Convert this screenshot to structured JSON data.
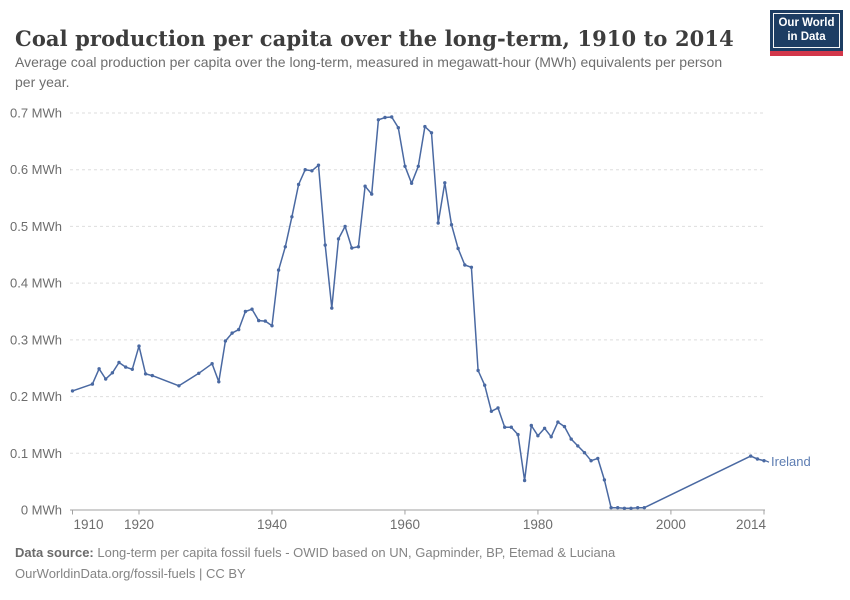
{
  "header": {
    "title": "Coal production per capita over the long-term, 1910 to 2014",
    "subtitle": "Average coal production per capita over the long-term, measured in megawatt-hour (MWh) equivalents per person per year."
  },
  "logo": {
    "line1": "Our World",
    "line2": "in Data"
  },
  "colors": {
    "series_line": "#4a69a2",
    "entity_label": "#5d7db2",
    "axis_line": "#a1a1a1",
    "gridline": "#dedede",
    "logo_background": "#1d3d63",
    "logo_red_bar": "#d2374a"
  },
  "chart_data": {
    "type": "line",
    "title": "Coal production per capita over the long-term, 1910 to 2014",
    "ylabel": "MWh",
    "xlabel": "",
    "xlim": [
      1910,
      2014
    ],
    "ylim": [
      0,
      0.7
    ],
    "grid": "horizontal dashed",
    "legend_position": "end-of-line label",
    "x_ticks": [
      1910,
      1920,
      1940,
      1960,
      1980,
      2000,
      2014
    ],
    "x_tick_labels": [
      "1910",
      "1920",
      "1940",
      "1960",
      "1980",
      "2000",
      "2014"
    ],
    "y_ticks": [
      0,
      0.1,
      0.2,
      0.3,
      0.4,
      0.5,
      0.6,
      0.7
    ],
    "y_tick_labels": [
      "0 MWh",
      "0.1 MWh",
      "0.2 MWh",
      "0.3 MWh",
      "0.4 MWh",
      "0.5 MWh",
      "0.6 MWh",
      "0.7 MWh"
    ],
    "series": [
      {
        "name": "Ireland",
        "color": "#4a69a2",
        "label_color": "#5d7db2",
        "points": [
          [
            1910,
            0.21
          ],
          [
            1913,
            0.222
          ],
          [
            1914,
            0.249
          ],
          [
            1915,
            0.231
          ],
          [
            1916,
            0.242
          ],
          [
            1917,
            0.26
          ],
          [
            1918,
            0.252
          ],
          [
            1919,
            0.248
          ],
          [
            1920,
            0.289
          ],
          [
            1921,
            0.24
          ],
          [
            1922,
            0.237
          ],
          [
            1926,
            0.219
          ],
          [
            1929,
            0.241
          ],
          [
            1931,
            0.258
          ],
          [
            1932,
            0.226
          ],
          [
            1933,
            0.298
          ],
          [
            1934,
            0.312
          ],
          [
            1935,
            0.318
          ],
          [
            1936,
            0.35
          ],
          [
            1937,
            0.354
          ],
          [
            1938,
            0.334
          ],
          [
            1939,
            0.333
          ],
          [
            1940,
            0.325
          ],
          [
            1941,
            0.423
          ],
          [
            1942,
            0.464
          ],
          [
            1943,
            0.517
          ],
          [
            1944,
            0.574
          ],
          [
            1945,
            0.6
          ],
          [
            1946,
            0.598
          ],
          [
            1947,
            0.608
          ],
          [
            1948,
            0.467
          ],
          [
            1949,
            0.356
          ],
          [
            1950,
            0.478
          ],
          [
            1951,
            0.5
          ],
          [
            1952,
            0.462
          ],
          [
            1953,
            0.464
          ],
          [
            1954,
            0.571
          ],
          [
            1955,
            0.557
          ],
          [
            1956,
            0.688
          ],
          [
            1957,
            0.692
          ],
          [
            1958,
            0.693
          ],
          [
            1959,
            0.674
          ],
          [
            1960,
            0.606
          ],
          [
            1961,
            0.576
          ],
          [
            1962,
            0.606
          ],
          [
            1963,
            0.676
          ],
          [
            1964,
            0.665
          ],
          [
            1965,
            0.506
          ],
          [
            1966,
            0.577
          ],
          [
            1967,
            0.503
          ],
          [
            1968,
            0.461
          ],
          [
            1969,
            0.432
          ],
          [
            1970,
            0.428
          ],
          [
            1971,
            0.246
          ],
          [
            1972,
            0.22
          ],
          [
            1973,
            0.174
          ],
          [
            1974,
            0.18
          ],
          [
            1975,
            0.146
          ],
          [
            1976,
            0.146
          ],
          [
            1977,
            0.133
          ],
          [
            1978,
            0.052
          ],
          [
            1979,
            0.149
          ],
          [
            1980,
            0.131
          ],
          [
            1981,
            0.144
          ],
          [
            1982,
            0.129
          ],
          [
            1983,
            0.155
          ],
          [
            1984,
            0.147
          ],
          [
            1985,
            0.125
          ],
          [
            1986,
            0.113
          ],
          [
            1987,
            0.101
          ],
          [
            1988,
            0.087
          ],
          [
            1989,
            0.091
          ],
          [
            1990,
            0.053
          ],
          [
            1991,
            0.004
          ],
          [
            1992,
            0.004
          ],
          [
            1993,
            0.003
          ],
          [
            1994,
            0.003
          ],
          [
            1995,
            0.004
          ],
          [
            1996,
            0.004
          ],
          [
            2012,
            0.095
          ],
          [
            2013,
            0.09
          ],
          [
            2014,
            0.087
          ]
        ]
      }
    ]
  },
  "footer": {
    "datasource_label": "Data source:",
    "datasource_text": " Long-term per capita fossil fuels - OWID based on UN, Gapminder, BP, Etemad & Luciana",
    "license_line": "OurWorldinData.org/fossil-fuels | CC BY"
  }
}
